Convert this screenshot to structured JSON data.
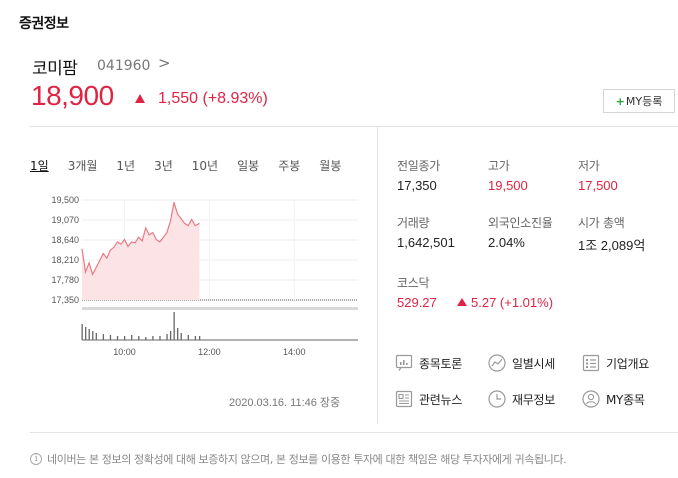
{
  "section_title": "증권정보",
  "stock": {
    "name": "코미팜",
    "code": "041960",
    "chevron": ">",
    "price": "18,900",
    "change": "1,550 (+8.93%)",
    "my_button": "MY등록",
    "my_plus": "+"
  },
  "chart": {
    "tabs": [
      "1일",
      "3개월",
      "1년",
      "3년",
      "10년",
      "일봉",
      "주봉",
      "월봉"
    ],
    "active_tab": "1일",
    "y_ticks": [
      "19,500",
      "19,070",
      "18,640",
      "18,210",
      "17,780",
      "17,350"
    ],
    "x_ticks": [
      "10:00",
      "12:00",
      "14:00"
    ],
    "timestamp": "2020.03.16. 11:46 장중"
  },
  "chart_data": {
    "type": "area",
    "ylim": [
      17350,
      19500
    ],
    "y_ticks": [
      19500,
      19070,
      18640,
      18210,
      17780,
      17350
    ],
    "x_ticks": [
      "10:00",
      "12:00",
      "14:00"
    ],
    "reference_price": 17350,
    "series": [
      {
        "x": [
          "09:00",
          "09:05",
          "09:10",
          "09:15",
          "09:20",
          "09:25",
          "09:30",
          "09:35",
          "09:40",
          "09:45",
          "09:50",
          "09:55",
          "10:00",
          "10:05",
          "10:10",
          "10:15",
          "10:20",
          "10:25",
          "10:30",
          "10:35",
          "10:40",
          "10:45",
          "10:50",
          "10:55",
          "11:00",
          "11:05",
          "11:10",
          "11:15",
          "11:20",
          "11:25",
          "11:30",
          "11:35",
          "11:40",
          "11:46"
        ],
        "values": [
          18450,
          17950,
          18150,
          17900,
          18050,
          18200,
          18350,
          18250,
          18420,
          18480,
          18600,
          18550,
          18650,
          18500,
          18600,
          18580,
          18700,
          18620,
          18900,
          18750,
          18800,
          18650,
          18600,
          18700,
          18800,
          19050,
          19450,
          19200,
          19100,
          19000,
          18950,
          19080,
          18950,
          19000
        ]
      }
    ],
    "volume": {
      "x": [
        "09:00",
        "09:05",
        "09:10",
        "09:15",
        "09:20",
        "09:30",
        "09:40",
        "09:50",
        "10:00",
        "10:10",
        "10:20",
        "10:30",
        "10:40",
        "10:50",
        "11:00",
        "11:05",
        "11:10",
        "11:15",
        "11:20",
        "11:30",
        "11:40",
        "11:46"
      ],
      "values": [
        16,
        13,
        11,
        9,
        7,
        6,
        5,
        4,
        4,
        5,
        4,
        3,
        4,
        4,
        6,
        9,
        28,
        12,
        7,
        5,
        4,
        4
      ]
    }
  },
  "info": {
    "prev_close_label": "전일종가",
    "prev_close": "17,350",
    "high_label": "고가",
    "high": "19,500",
    "low_label": "저가",
    "low": "17,500",
    "volume_label": "거래량",
    "volume": "1,642,501",
    "foreign_label": "외국인소진율",
    "foreign": "2.04%",
    "market_cap_label": "시가 총액",
    "market_cap": "1조 2,089억",
    "index_label": "코스닥",
    "index_value": "529.27",
    "index_change": "5.27 (+1.01%)"
  },
  "links": [
    {
      "label": "종목토론",
      "icon": "chat-bar-icon"
    },
    {
      "label": "일별시세",
      "icon": "trend-line-icon"
    },
    {
      "label": "기업개요",
      "icon": "list-icon"
    },
    {
      "label": "관련뉴스",
      "icon": "news-icon"
    },
    {
      "label": "재무정보",
      "icon": "clock-icon"
    },
    {
      "label": "MY종목",
      "icon": "user-icon"
    }
  ],
  "disclaimer": "네이버는 본 정보의 정확성에 대해 보증하지 않으며, 본 정보를 이용한 투자에 대한 책임은 해당 투자자에게 귀속됩니다.",
  "colors": {
    "up": "#e12343",
    "accent_green": "#2aa13a",
    "area_fill": "#fce4e6"
  }
}
